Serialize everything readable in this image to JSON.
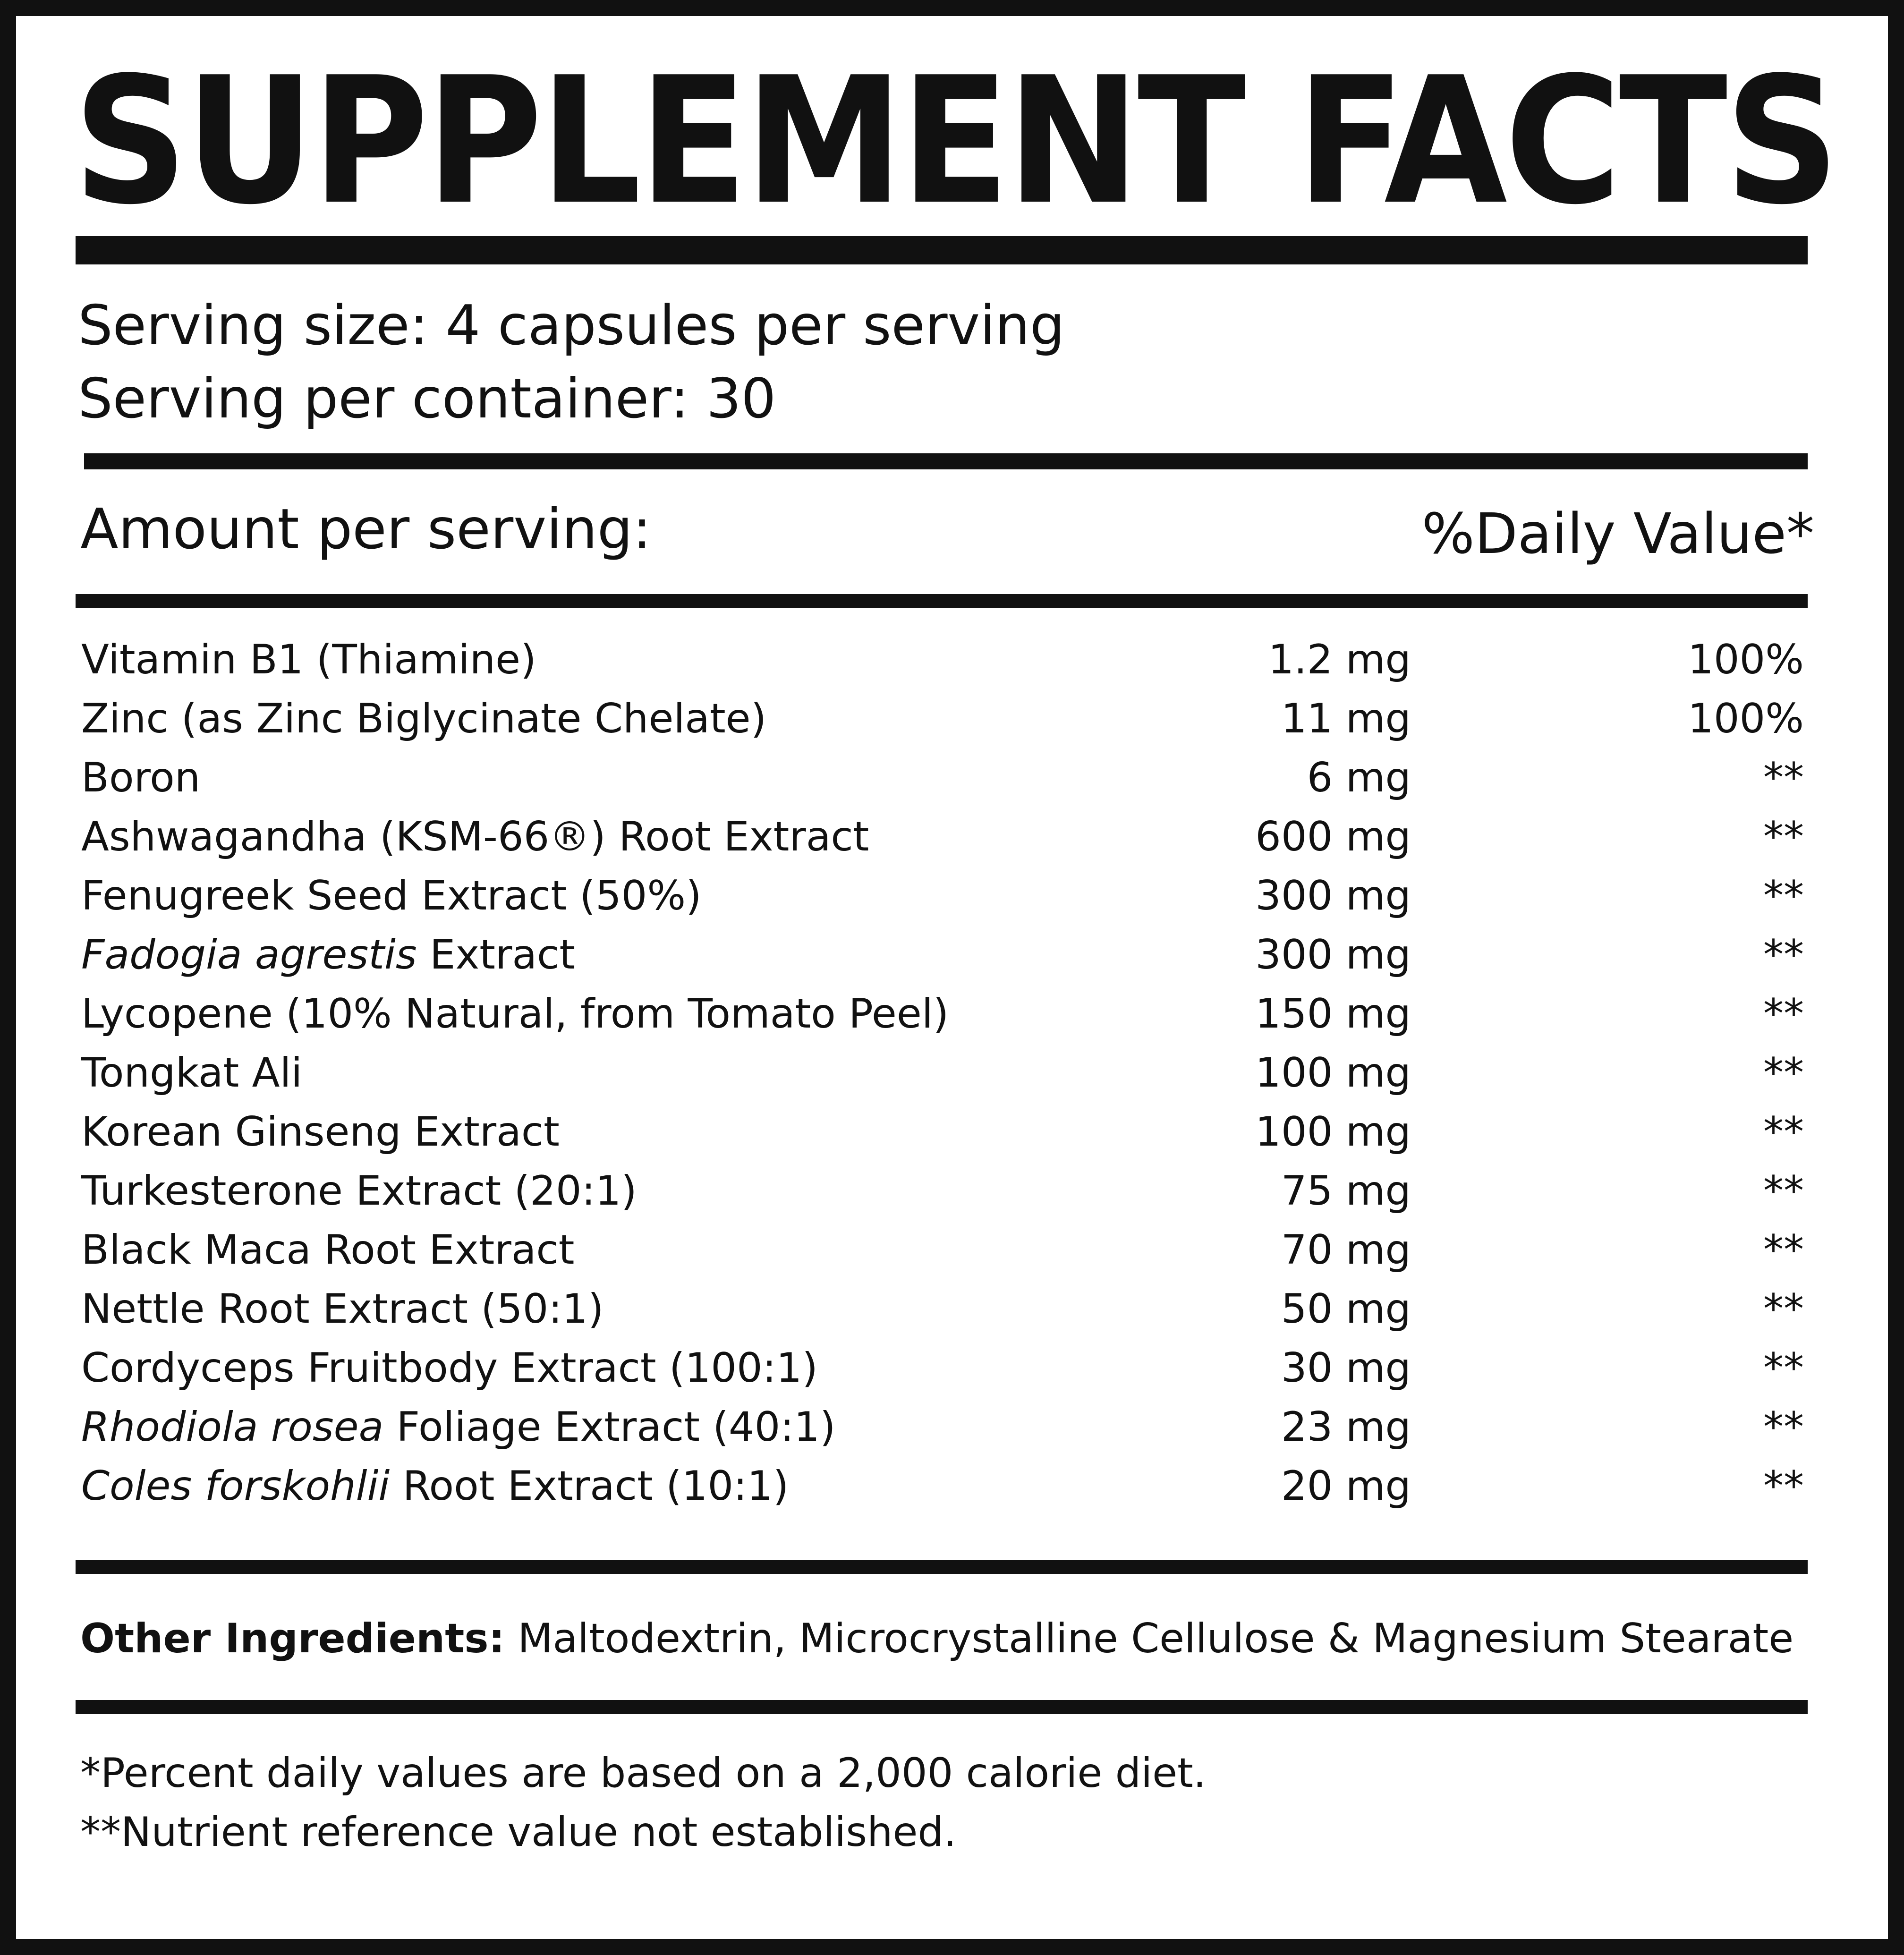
{
  "title": "SUPPLEMENT FACTS",
  "serving": {
    "size": "Serving size: 4 capsules per serving",
    "per_container": "Serving per container: 30"
  },
  "header": {
    "amount": "Amount per serving:",
    "daily_value": "%Daily Value*"
  },
  "ingredients": [
    {
      "pre_italic": "",
      "italic": "",
      "name": "Vitamin B1 (Thiamine)",
      "amount": "1.2 mg",
      "dv": "100%"
    },
    {
      "pre_italic": "",
      "italic": "",
      "name": "Zinc (as Zinc Biglycinate Chelate)",
      "amount": "11 mg",
      "dv": "100%"
    },
    {
      "pre_italic": "",
      "italic": "",
      "name": "Boron",
      "amount": "6 mg",
      "dv": "**"
    },
    {
      "pre_italic": "",
      "italic": "",
      "name": "Ashwagandha (KSM-66®) Root Extract",
      "amount": "600 mg",
      "dv": "**"
    },
    {
      "pre_italic": "",
      "italic": "",
      "name": "Fenugreek Seed Extract (50%)",
      "amount": "300 mg",
      "dv": "**"
    },
    {
      "pre_italic": "",
      "italic": "Fadogia agrestis",
      "name": " Extract",
      "amount": "300 mg",
      "dv": "**"
    },
    {
      "pre_italic": "",
      "italic": "",
      "name": "Lycopene (10% Natural, from Tomato Peel)",
      "amount": "150 mg",
      "dv": "**"
    },
    {
      "pre_italic": "",
      "italic": "",
      "name": "Tongkat Ali",
      "amount": "100 mg",
      "dv": "**"
    },
    {
      "pre_italic": "",
      "italic": "",
      "name": "Korean Ginseng Extract",
      "amount": "100 mg",
      "dv": "**"
    },
    {
      "pre_italic": "",
      "italic": "",
      "name": "Turkesterone Extract (20:1)",
      "amount": "75 mg",
      "dv": "**"
    },
    {
      "pre_italic": "",
      "italic": "",
      "name": "Black Maca Root Extract",
      "amount": "70 mg",
      "dv": "**"
    },
    {
      "pre_italic": "",
      "italic": "",
      "name": "Nettle Root Extract (50:1)",
      "amount": "50 mg",
      "dv": "**"
    },
    {
      "pre_italic": "",
      "italic": "",
      "name": "Cordyceps Fruitbody Extract (100:1)",
      "amount": "30 mg",
      "dv": "**"
    },
    {
      "pre_italic": "",
      "italic": "Rhodiola rosea",
      "name": " Foliage Extract (40:1)",
      "amount": "23 mg",
      "dv": "**"
    },
    {
      "pre_italic": "",
      "italic": "Coles forskohlii",
      "name": " Root Extract (10:1)",
      "amount": "20 mg",
      "dv": "**"
    }
  ],
  "other_ingredients": {
    "label": "Other Ingredients:",
    "text": " Maltodextrin, Microcrystalline Cellulose & Magnesium Stearate"
  },
  "footnotes": {
    "daily_values": "*Percent daily values are based on a 2,000 calorie diet.",
    "not_established": "**Nutrient reference value not established."
  },
  "colors": {
    "ink": "#111111",
    "background": "#ffffff"
  }
}
